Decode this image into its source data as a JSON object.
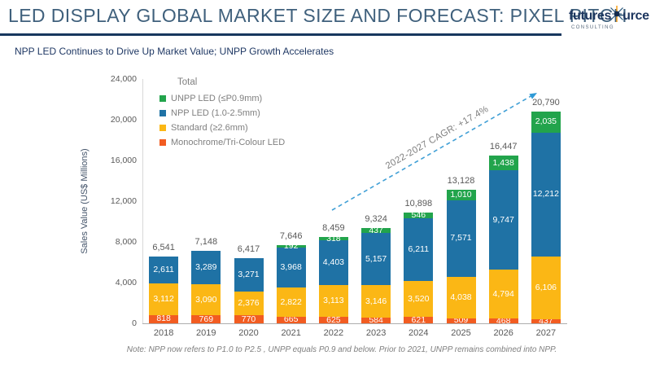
{
  "header": {
    "title": "LED DISPLAY GLOBAL MARKET SIZE AND FORECAST: PIXEL PITCH",
    "logo": {
      "brand_left": "futures",
      "brand_right": "urce",
      "tagline": "CONSULTING"
    }
  },
  "subtitle": "NPP LED Continues to Drive Up Market Value; UNPP Growth Accelerates",
  "annotation": {
    "cagr_label": "2022-2027 CAGR: +17.4%"
  },
  "footnote": "Note: NPP now refers to P1.0 to P2.5 , UNPP equals P0.9 and below. Prior to 2021, UNPP remains combined into NPP.",
  "colors": {
    "unpp_green": "#22A44C",
    "npp_blue": "#1F72A5",
    "standard_yellow": "#FBB715",
    "monochrome_orange": "#F25C21",
    "arrow_blue": "#41A0D6",
    "rule_navy": "#17375E",
    "title_blue": "#3F607C"
  },
  "chart_data": {
    "type": "bar",
    "stacked": true,
    "title": "",
    "xlabel": "",
    "ylabel": "Sales Value (US$ Millions)",
    "ylim": [
      0,
      24000
    ],
    "yticks": [
      0,
      4000,
      8000,
      12000,
      16000,
      20000,
      24000
    ],
    "grid": false,
    "categories": [
      "2018",
      "2019",
      "2020",
      "2021",
      "2022",
      "2023",
      "2024",
      "2025",
      "2026",
      "2027"
    ],
    "series": [
      {
        "key": "monochrome",
        "name": "Monochrome/Tri-Colour LED",
        "color": "#F25C21",
        "values": [
          818,
          769,
          770,
          665,
          625,
          584,
          621,
          509,
          468,
          437
        ]
      },
      {
        "key": "standard",
        "name": "Standard (≥2.6mm)",
        "color": "#FBB715",
        "values": [
          3112,
          3090,
          2376,
          2822,
          3113,
          3146,
          3520,
          4038,
          4794,
          6106
        ]
      },
      {
        "key": "npp",
        "name": "NPP LED (1.0-2.5mm)",
        "color": "#1F72A5",
        "values": [
          2611,
          3289,
          3271,
          3968,
          4403,
          5157,
          6211,
          7571,
          9747,
          12212
        ]
      },
      {
        "key": "unpp",
        "name": "UNPP LED (≤P0.9mm)",
        "color": "#22A44C",
        "values": [
          0,
          0,
          0,
          192,
          318,
          437,
          546,
          1010,
          1438,
          2035
        ]
      }
    ],
    "totals": [
      6541,
      7148,
      6417,
      7646,
      8459,
      9324,
      10898,
      13128,
      16447,
      20790
    ],
    "legend": {
      "title": "Total",
      "position": "top-left",
      "entries": [
        {
          "label": "UNPP LED (≤P0.9mm)",
          "color": "#22A44C"
        },
        {
          "label": "NPP LED (1.0-2.5mm)",
          "color": "#1F72A5"
        },
        {
          "label": "Standard (≥2.6mm)",
          "color": "#FBB715"
        },
        {
          "label": "Monochrome/Tri-Colour LED",
          "color": "#F25C21"
        }
      ]
    }
  }
}
